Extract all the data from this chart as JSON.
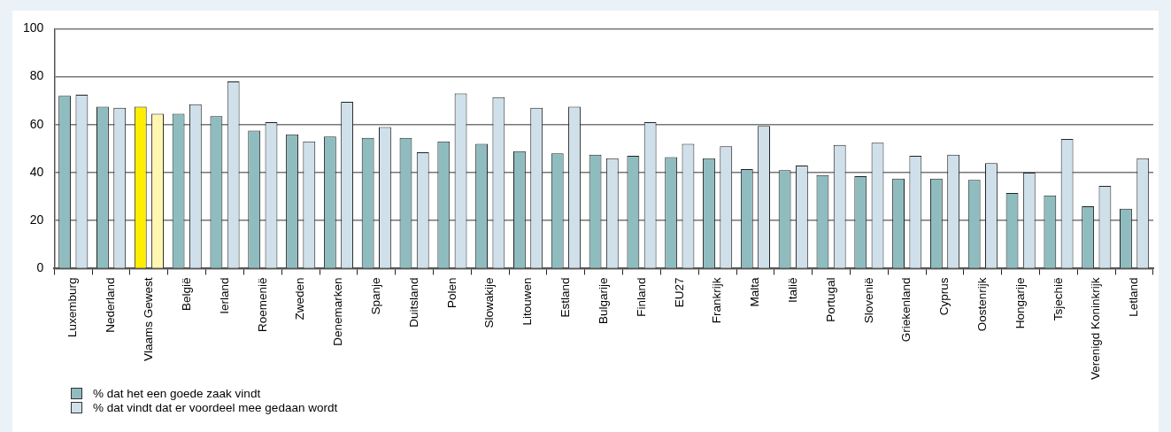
{
  "chart_data": {
    "type": "bar",
    "categories": [
      "Luxemburg",
      "Nederland",
      "Vlaams Gewest",
      "België",
      "Ierland",
      "Roemenië",
      "Zweden",
      "Denemarken",
      "Spanje",
      "Duitsland",
      "Polen",
      "Slowakije",
      "Litouwen",
      "Estland",
      "Bulgarije",
      "Finland",
      "EU27",
      "Frankrijk",
      "Malta",
      "Italië",
      "Portugal",
      "Slovenië",
      "Griekenland",
      "Cyprus",
      "Oostenrijk",
      "Hongarije",
      "Tsjechië",
      "Verenigd Koninkrijk",
      "Letland"
    ],
    "series": [
      {
        "name": "% dat het een goede zaak vindt",
        "color": "#8fbcbf",
        "colors": [
          "#8fbcbf",
          "#8fbcbf",
          "#ffee00",
          "#8fbcbf",
          "#8fbcbf",
          "#8fbcbf",
          "#8fbcbf",
          "#8fbcbf",
          "#8fbcbf",
          "#8fbcbf",
          "#8fbcbf",
          "#8fbcbf",
          "#8fbcbf",
          "#8fbcbf",
          "#8fbcbf",
          "#8fbcbf",
          "#8fbcbf",
          "#8fbcbf",
          "#8fbcbf",
          "#8fbcbf",
          "#8fbcbf",
          "#8fbcbf",
          "#8fbcbf",
          "#8fbcbf",
          "#8fbcbf",
          "#8fbcbf",
          "#8fbcbf",
          "#8fbcbf",
          "#8fbcbf"
        ],
        "values": [
          72,
          67.5,
          67.5,
          64.5,
          63.5,
          57.5,
          56,
          55,
          54.5,
          54.5,
          53,
          52,
          49,
          48,
          47.5,
          47,
          46.5,
          46,
          41.5,
          41,
          39,
          38.5,
          37.5,
          37.5,
          37,
          31.5,
          30.5,
          26,
          25
        ]
      },
      {
        "name": "% dat vindt dat er voordeel mee gedaan wordt",
        "color": "#cfe0ea",
        "colors": [
          "#cfe0ea",
          "#cfe0ea",
          "#fff6b0",
          "#cfe0ea",
          "#cfe0ea",
          "#cfe0ea",
          "#cfe0ea",
          "#cfe0ea",
          "#cfe0ea",
          "#cfe0ea",
          "#cfe0ea",
          "#cfe0ea",
          "#cfe0ea",
          "#cfe0ea",
          "#cfe0ea",
          "#cfe0ea",
          "#cfe0ea",
          "#cfe0ea",
          "#cfe0ea",
          "#cfe0ea",
          "#cfe0ea",
          "#cfe0ea",
          "#cfe0ea",
          "#cfe0ea",
          "#cfe0ea",
          "#cfe0ea",
          "#cfe0ea",
          "#cfe0ea",
          "#cfe0ea"
        ],
        "values": [
          72.5,
          67,
          64.5,
          68.5,
          78,
          61,
          53,
          69.5,
          59,
          48.5,
          73,
          71.5,
          67,
          67.5,
          46,
          61,
          52,
          51,
          59.5,
          43,
          51.5,
          52.5,
          47,
          47.5,
          44,
          40,
          54,
          34.5,
          46
        ]
      }
    ],
    "ylim": [
      0,
      100
    ],
    "yticks": [
      0,
      20,
      40,
      60,
      80,
      100
    ],
    "grid": "y",
    "legend": "bottom left"
  }
}
